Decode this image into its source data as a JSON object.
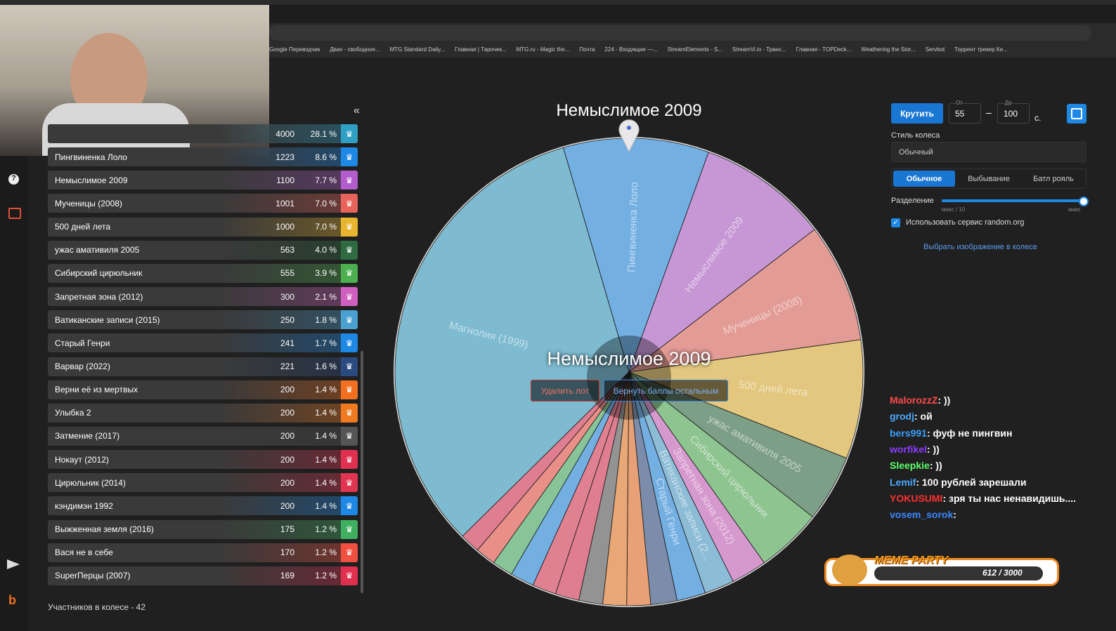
{
  "browser": {
    "bookmarks": [
      "Google Переводчик",
      "Двач - свободное...",
      "MTG Standard Daily...",
      "Главная | Тарочек...",
      "MTG.ru - Magic the...",
      "Почта",
      "224 - Входящие —...",
      "StreamElements - S...",
      "StreamVi.io - Транс...",
      "Главная - TOPDeck...",
      "Weathering the Stor...",
      "Servbot",
      "Торрент трекер Ки..."
    ]
  },
  "lots": {
    "collapse": "«",
    "rows": [
      {
        "points": "4000",
        "percent": "28.1 %",
        "color": "#2f9fc4"
      },
      {
        "name": "Пингвиненка Лоло",
        "points": "1223",
        "percent": "8.6 %",
        "color": "#1e88e5"
      },
      {
        "name": "Немыслимое 2009",
        "points": "1100",
        "percent": "7.7 %",
        "color": "#b35ccc"
      },
      {
        "name": "Мученицы (2008)",
        "points": "1001",
        "percent": "7.0 %",
        "color": "#e8645a"
      },
      {
        "name": "500 дней лета",
        "points": "1000",
        "percent": "7.0 %",
        "color": "#e8b530"
      },
      {
        "name": "ужас амативиля 2005",
        "points": "563",
        "percent": "4.0 %",
        "color": "#2e6b40"
      },
      {
        "name": "Сибирский цирюльник",
        "points": "555",
        "percent": "3.9 %",
        "color": "#4caf50"
      },
      {
        "name": "Запретная зона (2012)",
        "points": "300",
        "percent": "2.1 %",
        "color": "#d060c0"
      },
      {
        "name": "Ватиканские записи (2015)",
        "points": "250",
        "percent": "1.8 %",
        "color": "#4aa0d0"
      },
      {
        "name": "Старый Генри",
        "points": "241",
        "percent": "1.7 %",
        "color": "#1e88e5"
      },
      {
        "name": "Варвар (2022)",
        "points": "221",
        "percent": "1.6 %",
        "color": "#2a4a80"
      },
      {
        "name": "Верни её из мертвых",
        "points": "200",
        "percent": "1.4 %",
        "color": "#f07020"
      },
      {
        "name": "Улыбка 2",
        "points": "200",
        "percent": "1.4 %",
        "color": "#f07a20"
      },
      {
        "name": "Затмение (2017)",
        "points": "200",
        "percent": "1.4 %",
        "color": "#555555"
      },
      {
        "name": "Нокаут (2012)",
        "points": "200",
        "percent": "1.4 %",
        "color": "#e03050"
      },
      {
        "name": "Цирюльник (2014)",
        "points": "200",
        "percent": "1.4 %",
        "color": "#e03550"
      },
      {
        "name": "кэндимэн 1992",
        "points": "200",
        "percent": "1.4 %",
        "color": "#1e88e5"
      },
      {
        "name": "Выжженная земля (2016)",
        "points": "175",
        "percent": "1.2 %",
        "color": "#40b060"
      },
      {
        "name": "Вася не в себе",
        "points": "170",
        "percent": "1.2 %",
        "color": "#f05040"
      },
      {
        "name": "SuperПерцы (2007)",
        "points": "169",
        "percent": "1.2 %",
        "color": "#e03050"
      }
    ],
    "footer": "Участников в колесе - 42"
  },
  "wheel": {
    "title": "Немыслимое 2009",
    "winner": "Немыслимое 2009",
    "slice_labels": [
      "Магнолия (1999)",
      "Пингвиненка Лоло",
      "Немыслимое 2009",
      "Мученицы (2008)",
      "500 дней лета",
      "ужас амативиля 2005",
      "Сибирский цирюльник",
      "Запретная зона (2012)",
      "Ватиканские записи (2...",
      "Старый Генри"
    ],
    "delete_button": "Удалить лот",
    "return_button": "Вернуть баллы остальным"
  },
  "controls": {
    "spin": "Крутить",
    "from_label": "От",
    "from": "55",
    "to_label": "До",
    "to": "100",
    "unit": "с.",
    "style_label": "Стиль колеса",
    "style_value": "Обычный",
    "tabs": [
      "Обычное",
      "Выбывание",
      "Батл рояль"
    ],
    "split_label": "Разделение",
    "split_min": "макс / 10",
    "split_max": "макс",
    "random_org": "Использовать сервис random.org",
    "image_link": "Выбрать изображение в колесе"
  },
  "chat": [
    {
      "user": "MalorozzZ",
      "color": "#ff4a4a",
      "text": ": ))"
    },
    {
      "user": "grodj",
      "color": "#4aa8ff",
      "text": ": ой"
    },
    {
      "user": "bers991",
      "color": "#3aa0ff",
      "text": ": фуф не пингвин"
    },
    {
      "user": "worfikel",
      "color": "#8a3cff",
      "text": ": ))"
    },
    {
      "user": "Sleepkie",
      "color": "#5cff6a",
      "text": ": ))"
    },
    {
      "user": "Lemif",
      "color": "#4aa8ff",
      "text": ": 100 рублей зарешали"
    },
    {
      "user": "YOKUSUMI",
      "color": "#ff3030",
      "text": ": зря ты нас ненавидишь...."
    },
    {
      "user": "vosem_sorok",
      "color": "#3a8aff",
      "text": ":"
    }
  ],
  "overlay": {
    "title": "MEME PARTY",
    "progress": "612 / 3000"
  }
}
